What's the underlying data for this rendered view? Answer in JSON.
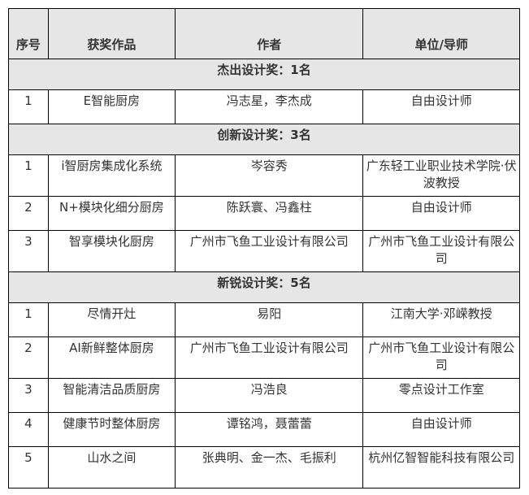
{
  "headers": [
    "序号",
    "获奖作品",
    "作者",
    "单位/导师"
  ],
  "sections": [
    {
      "title": "杰出设计奖：1名",
      "rows": [
        [
          "1",
          "E智能厨房",
          "冯志星，李杰成",
          "自由设计师"
        ]
      ]
    },
    {
      "title": "创新设计奖：3名",
      "rows": [
        [
          "1",
          "i智厨房集成化系统",
          "岑容秀",
          "广东轻工业职业技术学院·伏波教授"
        ],
        [
          "2",
          "N+模块化细分厨房",
          "陈跃寰、冯鑫柱",
          "自由设计师"
        ],
        [
          "3",
          "智享模块化厨房",
          "广州市飞鱼工业设计有限公司",
          "广州市飞鱼工业设计有限公司"
        ]
      ]
    },
    {
      "title": "新锐设计奖：5名",
      "rows": [
        [
          "1",
          "尽情开灶",
          "易阳",
          "江南大学·邓嵘教授"
        ],
        [
          "2",
          "AI新鲜整体厨房",
          "广州市飞鱼工业设计有限公司",
          "广州市飞鱼工业设计有限公司"
        ],
        [
          "3",
          "智能清洁品质厨房",
          "冯浩良",
          "零点设计工作室"
        ],
        [
          "4",
          "健康节时整体厨房",
          "谭铭鸿，聂蕾蕾",
          "自由设计师"
        ],
        [
          "5",
          "山水之间",
          "张典明、金一杰、毛振利",
          "杭州亿智智能科技有限公司"
        ]
      ]
    }
  ]
}
